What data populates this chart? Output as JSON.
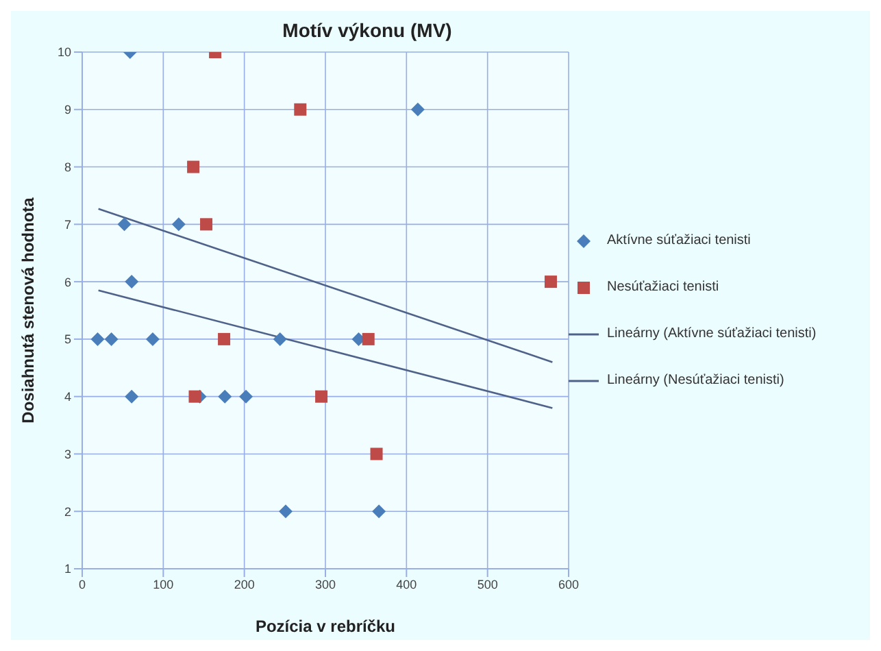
{
  "chart_data": {
    "type": "scatter",
    "title": "Motív výkonu (MV)",
    "xlabel": "Pozícia v rebríčku",
    "ylabel": "Dosiahnutá stenová hodnota",
    "xlim": [
      0,
      600
    ],
    "xticks": [
      0,
      100,
      200,
      300,
      400,
      500,
      600
    ],
    "ylim": [
      1,
      10
    ],
    "yticks": [
      1,
      2,
      3,
      4,
      5,
      6,
      7,
      8,
      9,
      10
    ],
    "grid": true,
    "legend": "right",
    "series": [
      {
        "name": "Aktívne súťažiaci tenisti",
        "color": "#4a7ebb",
        "marker": "diamond",
        "x": [
          59,
          414,
          52,
          119,
          61,
          19,
          36,
          87,
          244,
          341,
          61,
          145,
          176,
          202,
          251,
          366
        ],
        "values": [
          10,
          9,
          7,
          7,
          6,
          5,
          5,
          5,
          5,
          5,
          4,
          4,
          4,
          4,
          2,
          2
        ]
      },
      {
        "name": "Nesúťažiaci tenisti",
        "color": "#be4b48",
        "marker": "square",
        "x": [
          164,
          269,
          137,
          153,
          578,
          175,
          353,
          139,
          295,
          363
        ],
        "values": [
          10,
          9,
          8,
          7,
          6,
          5,
          5,
          4,
          4,
          3
        ]
      },
      {
        "name": "Lineárny (Aktívne súťažiaci tenisti)",
        "type": "line",
        "color": "#4f6289",
        "marker": "none",
        "x": [
          20,
          580
        ],
        "values": [
          5.85,
          3.8
        ]
      },
      {
        "name": "Lineárny (Nesúťažiaci tenisti)",
        "type": "line",
        "color": "#4f6289",
        "marker": "none",
        "x": [
          20,
          580
        ],
        "values": [
          7.27,
          4.6
        ]
      }
    ]
  }
}
